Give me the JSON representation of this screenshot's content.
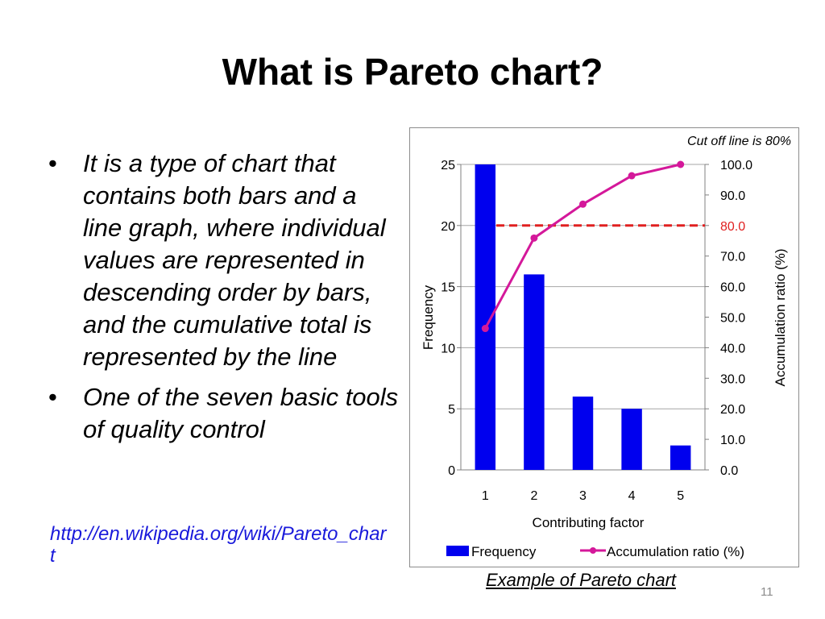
{
  "slide": {
    "title": "What is Pareto chart?",
    "bullets": [
      "It is a type of chart that contains both bars and a line graph, where individual values are represented in descending order by bars, and the cumulative total is represented by the line",
      "One of the seven basic tools of quality control"
    ],
    "bullet_marker": "•",
    "link": "http://en.wikipedia.org/wiki/Pareto_chart",
    "caption": "Example of Pareto chart",
    "page_number": "11"
  },
  "chart_data": {
    "type": "bar",
    "categories": [
      "1",
      "2",
      "3",
      "4",
      "5"
    ],
    "series": [
      {
        "name": "Frequency",
        "type": "bar",
        "axis": "left",
        "values": [
          25,
          16,
          6,
          5,
          2
        ],
        "color": "#0000ee"
      },
      {
        "name": "Accumulation ratio (%)",
        "type": "line",
        "axis": "right",
        "values": [
          46.3,
          75.9,
          87.0,
          96.3,
          100.0
        ],
        "color": "#d4189a"
      }
    ],
    "xlabel": "Contributing factor",
    "ylabel": "Frequency",
    "y2label": "Accumulation ratio (%)",
    "ylim": [
      0,
      25
    ],
    "yticks": [
      "0",
      "5",
      "10",
      "15",
      "20",
      "25"
    ],
    "y2lim": [
      0,
      100
    ],
    "y2ticks": [
      "0.0",
      "10.0",
      "20.0",
      "30.0",
      "40.0",
      "50.0",
      "60.0",
      "70.0",
      "80.0",
      "90.0",
      "100.0"
    ],
    "cutoff": {
      "value": 80,
      "label": "80.0",
      "annotation": "Cut off line is 80%",
      "color": "#e02020"
    },
    "grid": true,
    "legend": "bottom"
  }
}
